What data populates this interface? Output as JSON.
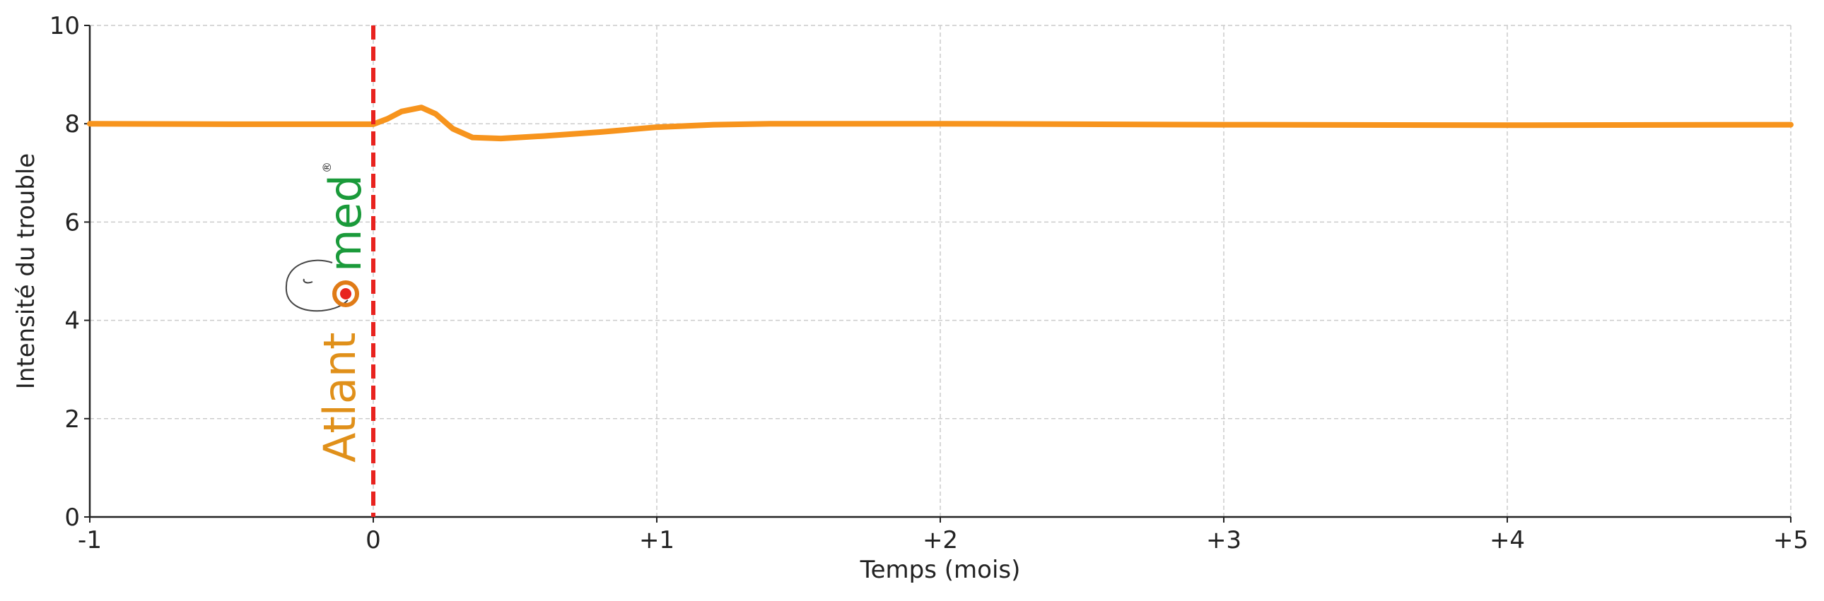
{
  "chart_data": {
    "type": "line",
    "xlabel": "Temps (mois)",
    "ylabel": "Intensité du trouble",
    "xlim": [
      -1,
      5
    ],
    "ylim": [
      0,
      10
    ],
    "xticks": [
      -1,
      0,
      {
        "value": 1,
        "label": "+1"
      },
      {
        "value": 2,
        "label": "+2"
      },
      {
        "value": 3,
        "label": "+3"
      },
      {
        "value": 4,
        "label": "+4"
      },
      {
        "value": 5,
        "label": "+5"
      }
    ],
    "yticks": [
      0,
      2,
      4,
      6,
      8,
      10
    ],
    "grid": true,
    "series": [
      {
        "color": "#f7941d",
        "x": [
          -1,
          -0.5,
          0,
          0.05,
          0.1,
          0.17,
          0.22,
          0.28,
          0.35,
          0.45,
          0.6,
          0.8,
          1,
          1.2,
          1.4,
          2,
          3,
          4,
          5
        ],
        "values": [
          8,
          7.99,
          7.99,
          8.1,
          8.25,
          8.33,
          8.2,
          7.9,
          7.72,
          7.7,
          7.75,
          7.83,
          7.93,
          7.98,
          8,
          8,
          7.98,
          7.97,
          7.98
        ]
      }
    ],
    "vline": {
      "x": 0,
      "color": "#e8231f"
    },
    "watermark": [
      "Atlant",
      "med",
      "®"
    ]
  }
}
